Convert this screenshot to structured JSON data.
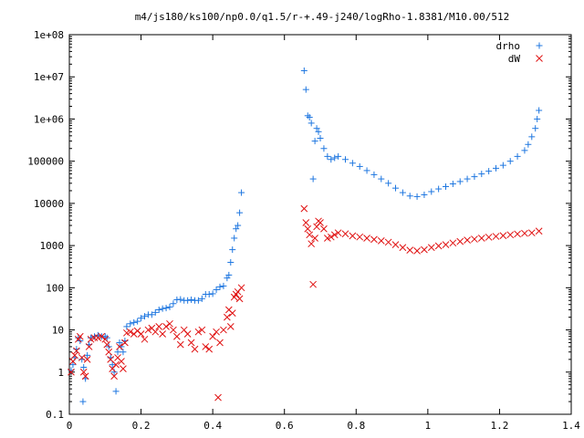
{
  "chart_data": {
    "type": "scatter",
    "title": "m4/js180/ks100/np0.0/q1.5/r-+.49-j240/logRho-1.8381/M10.00/512",
    "xlabel": "",
    "ylabel": "",
    "xlim": [
      0,
      1.4
    ],
    "ylim": [
      0.1,
      100000000
    ],
    "yscale": "log",
    "grid": false,
    "legend_position": "top-right",
    "x_ticks": [
      0,
      0.2,
      0.4,
      0.6,
      0.8,
      1,
      1.2,
      1.4
    ],
    "x_tick_labels": [
      "0",
      "0.2",
      "0.4",
      "0.6",
      "0.8",
      "1",
      "1.2",
      "1.4"
    ],
    "y_ticks": [
      0.1,
      1,
      10,
      100,
      1000,
      10000,
      100000,
      1000000,
      10000000,
      100000000
    ],
    "y_tick_labels": [
      "0.1",
      "1",
      "10",
      "100",
      "1000",
      "10000",
      "100000",
      "1e+06",
      "1e+07",
      "1e+08"
    ],
    "series": [
      {
        "name": "drho",
        "marker": "plus",
        "color": "#1f77e0",
        "points": [
          [
            0.005,
            1.1
          ],
          [
            0.01,
            1.5
          ],
          [
            0.015,
            2.2
          ],
          [
            0.02,
            3.5
          ],
          [
            0.025,
            6.5
          ],
          [
            0.03,
            5.5
          ],
          [
            0.035,
            2.0
          ],
          [
            0.038,
            0.2
          ],
          [
            0.04,
            1.3
          ],
          [
            0.045,
            0.7
          ],
          [
            0.05,
            2.5
          ],
          [
            0.055,
            4.5
          ],
          [
            0.06,
            6.5
          ],
          [
            0.07,
            7.0
          ],
          [
            0.08,
            7.5
          ],
          [
            0.09,
            7.0
          ],
          [
            0.1,
            7.0
          ],
          [
            0.105,
            6.5
          ],
          [
            0.11,
            4.0
          ],
          [
            0.115,
            2.2
          ],
          [
            0.12,
            1.5
          ],
          [
            0.125,
            1.0
          ],
          [
            0.13,
            0.35
          ],
          [
            0.135,
            3.0
          ],
          [
            0.14,
            5.0
          ],
          [
            0.145,
            4.0
          ],
          [
            0.15,
            3.0
          ],
          [
            0.155,
            5.5
          ],
          [
            0.16,
            12
          ],
          [
            0.17,
            14
          ],
          [
            0.18,
            15
          ],
          [
            0.19,
            16
          ],
          [
            0.2,
            19
          ],
          [
            0.21,
            21
          ],
          [
            0.22,
            23
          ],
          [
            0.23,
            23
          ],
          [
            0.24,
            26
          ],
          [
            0.25,
            30
          ],
          [
            0.26,
            32
          ],
          [
            0.27,
            33
          ],
          [
            0.28,
            35
          ],
          [
            0.29,
            42
          ],
          [
            0.3,
            52
          ],
          [
            0.31,
            53
          ],
          [
            0.32,
            50
          ],
          [
            0.33,
            50
          ],
          [
            0.34,
            52
          ],
          [
            0.35,
            50
          ],
          [
            0.36,
            50
          ],
          [
            0.37,
            55
          ],
          [
            0.38,
            70
          ],
          [
            0.39,
            70
          ],
          [
            0.4,
            72
          ],
          [
            0.41,
            90
          ],
          [
            0.42,
            105
          ],
          [
            0.43,
            110
          ],
          [
            0.44,
            170
          ],
          [
            0.445,
            200
          ],
          [
            0.45,
            400
          ],
          [
            0.455,
            800
          ],
          [
            0.46,
            1500
          ],
          [
            0.465,
            2500
          ],
          [
            0.47,
            3000
          ],
          [
            0.475,
            6000
          ],
          [
            0.48,
            18000
          ],
          [
            0.655,
            14000000
          ],
          [
            0.66,
            5000000
          ],
          [
            0.665,
            1200000
          ],
          [
            0.67,
            1100000
          ],
          [
            0.675,
            800000
          ],
          [
            0.68,
            38000
          ],
          [
            0.685,
            300000
          ],
          [
            0.69,
            600000
          ],
          [
            0.695,
            500000
          ],
          [
            0.7,
            350000
          ],
          [
            0.71,
            200000
          ],
          [
            0.72,
            130000
          ],
          [
            0.73,
            110000
          ],
          [
            0.74,
            120000
          ],
          [
            0.75,
            130000
          ],
          [
            0.77,
            110000
          ],
          [
            0.79,
            90000
          ],
          [
            0.81,
            75000
          ],
          [
            0.83,
            60000
          ],
          [
            0.85,
            48000
          ],
          [
            0.87,
            38000
          ],
          [
            0.89,
            30000
          ],
          [
            0.91,
            23000
          ],
          [
            0.93,
            18000
          ],
          [
            0.95,
            15000
          ],
          [
            0.97,
            14500
          ],
          [
            0.99,
            16000
          ],
          [
            1.01,
            19000
          ],
          [
            1.03,
            22000
          ],
          [
            1.05,
            25000
          ],
          [
            1.07,
            29000
          ],
          [
            1.09,
            33000
          ],
          [
            1.11,
            38000
          ],
          [
            1.13,
            43000
          ],
          [
            1.15,
            50000
          ],
          [
            1.17,
            58000
          ],
          [
            1.19,
            68000
          ],
          [
            1.21,
            80000
          ],
          [
            1.23,
            100000
          ],
          [
            1.25,
            130000
          ],
          [
            1.27,
            180000
          ],
          [
            1.28,
            250000
          ],
          [
            1.29,
            380000
          ],
          [
            1.3,
            600000
          ],
          [
            1.305,
            1000000
          ],
          [
            1.31,
            1600000
          ]
        ]
      },
      {
        "name": "dW",
        "marker": "cross",
        "color": "#e01010",
        "points": [
          [
            0.005,
            1.0
          ],
          [
            0.01,
            1.8
          ],
          [
            0.015,
            2.5
          ],
          [
            0.02,
            3.2
          ],
          [
            0.025,
            6.0
          ],
          [
            0.03,
            7.0
          ],
          [
            0.035,
            2.2
          ],
          [
            0.04,
            1.0
          ],
          [
            0.045,
            0.8
          ],
          [
            0.05,
            2.0
          ],
          [
            0.055,
            4.0
          ],
          [
            0.06,
            6.0
          ],
          [
            0.07,
            6.5
          ],
          [
            0.08,
            6.5
          ],
          [
            0.09,
            7.0
          ],
          [
            0.1,
            6.0
          ],
          [
            0.105,
            4.5
          ],
          [
            0.11,
            3.0
          ],
          [
            0.115,
            2.0
          ],
          [
            0.12,
            1.2
          ],
          [
            0.125,
            0.8
          ],
          [
            0.13,
            1.5
          ],
          [
            0.135,
            2.2
          ],
          [
            0.14,
            4.0
          ],
          [
            0.145,
            1.8
          ],
          [
            0.15,
            1.2
          ],
          [
            0.155,
            5.0
          ],
          [
            0.16,
            8.5
          ],
          [
            0.17,
            9.0
          ],
          [
            0.18,
            8.0
          ],
          [
            0.19,
            9.5
          ],
          [
            0.2,
            8.0
          ],
          [
            0.21,
            6.0
          ],
          [
            0.22,
            10.0
          ],
          [
            0.23,
            11.0
          ],
          [
            0.24,
            9.0
          ],
          [
            0.25,
            12.0
          ],
          [
            0.26,
            8.0
          ],
          [
            0.27,
            12.0
          ],
          [
            0.28,
            14.0
          ],
          [
            0.29,
            10.0
          ],
          [
            0.3,
            7.0
          ],
          [
            0.31,
            4.5
          ],
          [
            0.32,
            10.0
          ],
          [
            0.33,
            8.0
          ],
          [
            0.34,
            5.0
          ],
          [
            0.35,
            3.5
          ],
          [
            0.36,
            9.0
          ],
          [
            0.37,
            10.0
          ],
          [
            0.38,
            4.0
          ],
          [
            0.39,
            3.5
          ],
          [
            0.4,
            7.0
          ],
          [
            0.41,
            9.0
          ],
          [
            0.415,
            0.25
          ],
          [
            0.42,
            5.0
          ],
          [
            0.43,
            10.0
          ],
          [
            0.44,
            20.0
          ],
          [
            0.445,
            30.0
          ],
          [
            0.45,
            12.0
          ],
          [
            0.455,
            25.0
          ],
          [
            0.46,
            60.0
          ],
          [
            0.465,
            70.0
          ],
          [
            0.47,
            80.0
          ],
          [
            0.475,
            55.0
          ],
          [
            0.48,
            100.0
          ],
          [
            0.655,
            7500
          ],
          [
            0.66,
            3500
          ],
          [
            0.665,
            2500
          ],
          [
            0.67,
            1800
          ],
          [
            0.675,
            1100
          ],
          [
            0.68,
            120
          ],
          [
            0.685,
            1500
          ],
          [
            0.69,
            2800
          ],
          [
            0.695,
            3800
          ],
          [
            0.7,
            3500
          ],
          [
            0.71,
            2500
          ],
          [
            0.72,
            1500
          ],
          [
            0.73,
            1600
          ],
          [
            0.74,
            1800
          ],
          [
            0.75,
            2000
          ],
          [
            0.77,
            1900
          ],
          [
            0.79,
            1700
          ],
          [
            0.81,
            1600
          ],
          [
            0.83,
            1500
          ],
          [
            0.85,
            1400
          ],
          [
            0.87,
            1300
          ],
          [
            0.89,
            1200
          ],
          [
            0.91,
            1050
          ],
          [
            0.93,
            900
          ],
          [
            0.95,
            780
          ],
          [
            0.97,
            750
          ],
          [
            0.99,
            800
          ],
          [
            1.01,
            900
          ],
          [
            1.03,
            980
          ],
          [
            1.05,
            1050
          ],
          [
            1.07,
            1150
          ],
          [
            1.09,
            1250
          ],
          [
            1.11,
            1350
          ],
          [
            1.13,
            1420
          ],
          [
            1.15,
            1500
          ],
          [
            1.17,
            1580
          ],
          [
            1.19,
            1650
          ],
          [
            1.21,
            1720
          ],
          [
            1.23,
            1800
          ],
          [
            1.25,
            1880
          ],
          [
            1.27,
            1950
          ],
          [
            1.29,
            2000
          ],
          [
            1.31,
            2200
          ]
        ]
      }
    ]
  }
}
